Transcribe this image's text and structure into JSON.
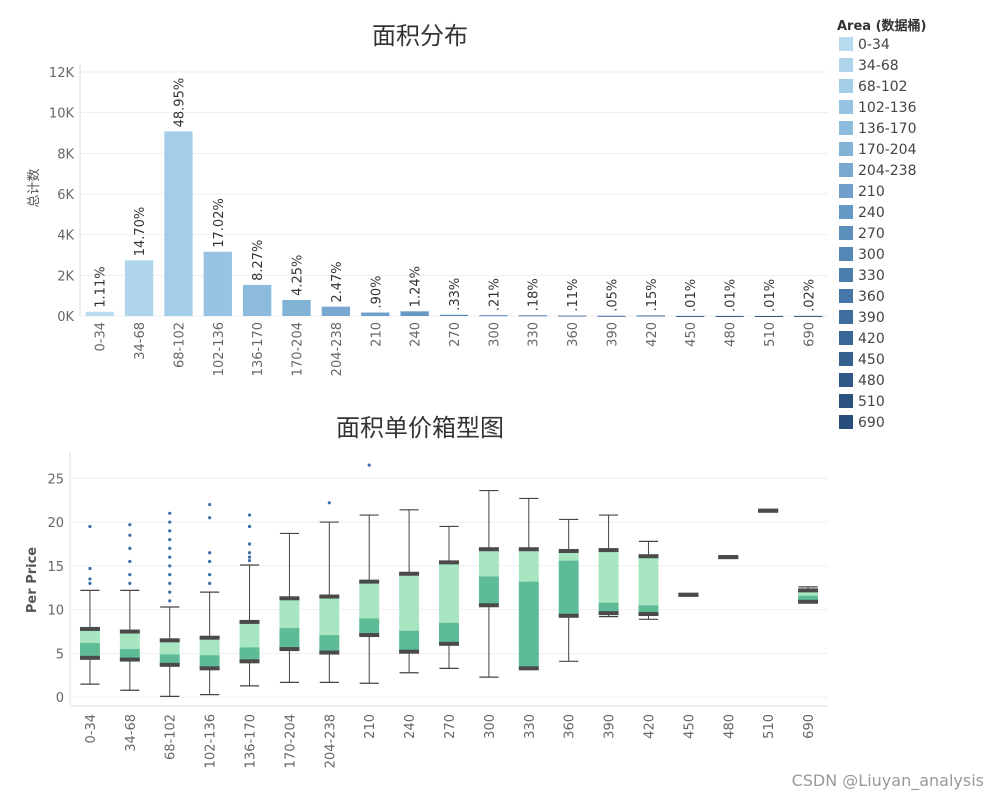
{
  "chart_data": [
    {
      "type": "bar",
      "title": "面积分布",
      "ylabel": "总计数",
      "xlabel": "",
      "ylim": [
        0,
        12000
      ],
      "yticks": [
        0,
        2000,
        4000,
        6000,
        8000,
        10000,
        12000
      ],
      "ytick_labels": [
        "0K",
        "2K",
        "4K",
        "6K",
        "8K",
        "10K",
        "12K"
      ],
      "categories": [
        "0-34",
        "34-68",
        "68-102",
        "102-136",
        "136-170",
        "170-204",
        "204-238",
        "210",
        "240",
        "270",
        "300",
        "330",
        "360",
        "390",
        "420",
        "450",
        "480",
        "510",
        "690"
      ],
      "values": [
        210,
        2740,
        9080,
        3160,
        1530,
        790,
        460,
        170,
        230,
        60,
        40,
        35,
        20,
        10,
        28,
        2,
        2,
        2,
        4
      ],
      "labels": [
        "1.11%",
        "14.70%",
        "48.95%",
        "17.02%",
        "8.27%",
        "4.25%",
        "2.47%",
        ".90%",
        "1.24%",
        ".33%",
        ".21%",
        ".18%",
        ".11%",
        ".05%",
        ".15%",
        ".01%",
        ".01%",
        ".01%",
        ".02%"
      ],
      "colors": [
        "#b8dcef",
        "#aed5ec",
        "#a3cde8",
        "#98c4e3",
        "#8dbbdd",
        "#83b2d7",
        "#79a9d1",
        "#6fa0cb",
        "#6698c4",
        "#5d8fbd",
        "#5486b6",
        "#4c7eae",
        "#4576a7",
        "#3f6e9f",
        "#396797",
        "#345f8f",
        "#2f5887",
        "#2b517f",
        "#2a4e7c"
      ]
    },
    {
      "type": "box",
      "title": "面积单价箱型图",
      "ylabel": "Per Price",
      "ylim": [
        -1,
        28
      ],
      "yticks": [
        0,
        5,
        10,
        15,
        20,
        25
      ],
      "categories": [
        "0-34",
        "34-68",
        "68-102",
        "102-136",
        "136-170",
        "170-204",
        "204-238",
        "210",
        "240",
        "270",
        "300",
        "330",
        "360",
        "390",
        "420",
        "450",
        "480",
        "510",
        "690"
      ],
      "boxes": [
        {
          "min": 1.5,
          "q1": 4.5,
          "median": 6.2,
          "q3": 7.8,
          "max": 12.2,
          "outliers": [
            19.5,
            14.7,
            13.5,
            13.0
          ]
        },
        {
          "min": 0.8,
          "q1": 4.3,
          "median": 5.5,
          "q3": 7.5,
          "max": 12.2,
          "outliers": [
            19.7,
            18.5,
            17.0,
            15.5,
            14.0,
            13.0
          ]
        },
        {
          "min": 0.1,
          "q1": 3.7,
          "median": 4.9,
          "q3": 6.5,
          "max": 10.3,
          "outliers": [
            21.0,
            20.0,
            19.0,
            18.0,
            17.0,
            16.0,
            15.0,
            14.0,
            13.0,
            12.0,
            11.0
          ]
        },
        {
          "min": 0.3,
          "q1": 3.3,
          "median": 4.8,
          "q3": 6.8,
          "max": 12.0,
          "outliers": [
            22.0,
            20.5,
            16.5,
            15.5,
            14.0,
            13.0
          ]
        },
        {
          "min": 1.3,
          "q1": 4.1,
          "median": 5.7,
          "q3": 8.6,
          "max": 15.1,
          "outliers": [
            20.8,
            19.5,
            17.5,
            16.5,
            16.0,
            15.6
          ]
        },
        {
          "min": 1.7,
          "q1": 5.5,
          "median": 7.9,
          "q3": 11.3,
          "max": 18.7,
          "outliers": []
        },
        {
          "min": 1.7,
          "q1": 5.1,
          "median": 7.1,
          "q3": 11.5,
          "max": 20.0,
          "outliers": [
            22.2
          ]
        },
        {
          "min": 1.6,
          "q1": 7.1,
          "median": 9.0,
          "q3": 13.2,
          "max": 20.8,
          "outliers": [
            26.5
          ]
        },
        {
          "min": 2.8,
          "q1": 5.2,
          "median": 7.6,
          "q3": 14.1,
          "max": 21.4,
          "outliers": []
        },
        {
          "min": 3.3,
          "q1": 6.1,
          "median": 8.5,
          "q3": 15.4,
          "max": 19.5,
          "outliers": []
        },
        {
          "min": 2.3,
          "q1": 10.5,
          "median": 13.8,
          "q3": 16.9,
          "max": 23.6,
          "outliers": []
        },
        {
          "min": 3.3,
          "q1": 3.3,
          "median": 13.2,
          "q3": 16.9,
          "max": 22.7,
          "outliers": []
        },
        {
          "min": 4.1,
          "q1": 9.3,
          "median": 15.6,
          "q3": 16.7,
          "max": 20.3,
          "outliers": []
        },
        {
          "min": 9.2,
          "q1": 9.6,
          "median": 10.8,
          "q3": 16.8,
          "max": 20.8,
          "outliers": []
        },
        {
          "min": 8.9,
          "q1": 9.5,
          "median": 10.5,
          "q3": 16.1,
          "max": 17.8,
          "outliers": []
        },
        {
          "min": 11.7,
          "q1": 11.7,
          "median": 11.7,
          "q3": 11.7,
          "max": 11.7,
          "outliers": []
        },
        {
          "min": 16.0,
          "q1": 16.0,
          "median": 16.0,
          "q3": 16.0,
          "max": 16.0,
          "outliers": []
        },
        {
          "min": 21.3,
          "q1": 21.3,
          "median": 21.3,
          "q3": 21.3,
          "max": 21.3,
          "outliers": []
        },
        {
          "min": 10.9,
          "q1": 10.9,
          "median": 11.6,
          "q3": 12.2,
          "max": 12.6,
          "outliers": []
        }
      ],
      "box_colors": {
        "lower": "#5dbb96",
        "upper": "#a8e6c2",
        "whisker": "#444444",
        "outlier": "#3c6fa5"
      }
    }
  ],
  "legend": {
    "title": "Area (数据桶)",
    "items": [
      "0-34",
      "34-68",
      "68-102",
      "102-136",
      "136-170",
      "170-204",
      "204-238",
      "210",
      "240",
      "270",
      "300",
      "330",
      "360",
      "390",
      "420",
      "450",
      "480",
      "510",
      "690"
    ]
  },
  "watermark": "CSDN @Liuyan_analysis"
}
